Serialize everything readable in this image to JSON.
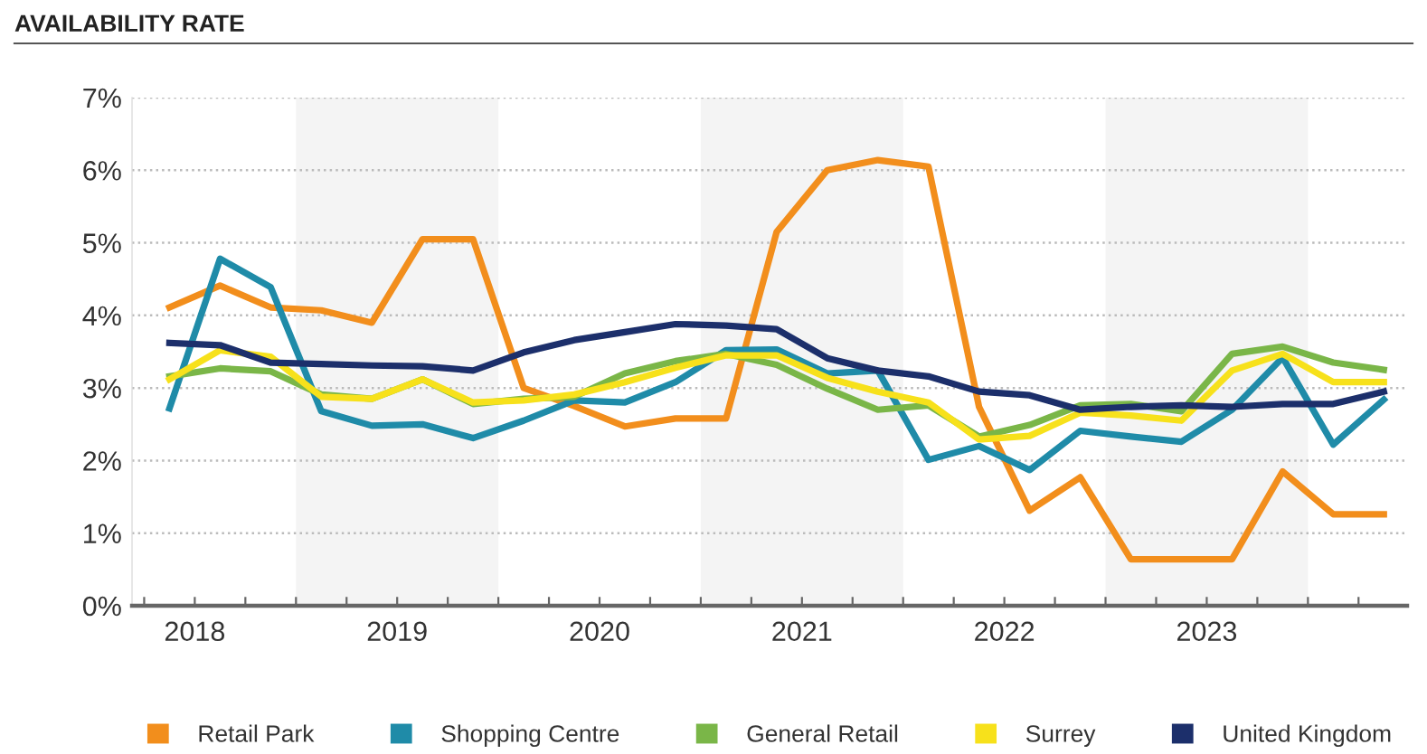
{
  "chart_data": {
    "type": "line",
    "title": "AVAILABILITY RATE",
    "x": [
      2018.375,
      2018.625,
      2018.875,
      2019.125,
      2019.375,
      2019.625,
      2019.875,
      2020.125,
      2020.375,
      2020.625,
      2020.875,
      2021.125,
      2021.375,
      2021.625,
      2021.875,
      2022.125,
      2022.375,
      2022.625,
      2022.875,
      2023.125,
      2023.375,
      2023.625,
      2023.875,
      2024.125,
      2024.375
    ],
    "series": [
      {
        "name": "Retail Park",
        "color": "#f28e1c",
        "values": [
          4.11,
          4.41,
          4.11,
          4.07,
          3.9,
          5.05,
          5.05,
          3.0,
          2.75,
          2.47,
          2.58,
          2.58,
          5.15,
          6.0,
          6.14,
          6.05,
          2.74,
          1.31,
          1.77,
          0.64,
          0.64,
          0.64,
          1.85,
          1.26,
          1.26
        ]
      },
      {
        "name": "Shopping Centre",
        "color": "#1f8ba8",
        "values": [
          2.72,
          4.78,
          4.39,
          2.68,
          2.48,
          2.5,
          2.31,
          2.55,
          2.83,
          2.8,
          3.08,
          3.52,
          3.53,
          3.2,
          3.24,
          2.01,
          2.2,
          1.87,
          2.41,
          2.33,
          2.26,
          2.7,
          3.42,
          2.22,
          2.84
        ]
      },
      {
        "name": "General Retail",
        "color": "#7ab648",
        "values": [
          3.16,
          3.27,
          3.23,
          2.91,
          2.85,
          3.12,
          2.78,
          2.85,
          2.88,
          3.2,
          3.37,
          3.47,
          3.32,
          2.99,
          2.7,
          2.76,
          2.33,
          2.49,
          2.76,
          2.78,
          2.68,
          3.47,
          3.57,
          3.35,
          3.25
        ]
      },
      {
        "name": "Surrey",
        "color": "#f7e11b",
        "values": [
          3.12,
          3.52,
          3.43,
          2.88,
          2.85,
          3.12,
          2.8,
          2.83,
          2.91,
          3.08,
          3.28,
          3.45,
          3.45,
          3.14,
          2.95,
          2.8,
          2.29,
          2.34,
          2.66,
          2.62,
          2.55,
          3.24,
          3.47,
          3.08,
          3.08
        ]
      },
      {
        "name": "United Kingdom",
        "color": "#1c2f6b",
        "values": [
          3.62,
          3.59,
          3.35,
          3.33,
          3.31,
          3.3,
          3.24,
          3.49,
          3.66,
          3.77,
          3.88,
          3.86,
          3.81,
          3.41,
          3.24,
          3.16,
          2.95,
          2.9,
          2.7,
          2.74,
          2.76,
          2.74,
          2.78,
          2.78,
          2.95
        ]
      }
    ],
    "xlim": [
      2018.19,
      2024.49
    ],
    "xticks": [
      {
        "value": 2018.25,
        "label": null
      },
      {
        "value": 2018.5,
        "label": "2018"
      },
      {
        "value": 2018.75,
        "label": null
      },
      {
        "value": 2019,
        "label": null
      },
      {
        "value": 2019.25,
        "label": null
      },
      {
        "value": 2019.5,
        "label": "2019"
      },
      {
        "value": 2019.75,
        "label": null
      },
      {
        "value": 2020,
        "label": null
      },
      {
        "value": 2020.25,
        "label": null
      },
      {
        "value": 2020.5,
        "label": "2020"
      },
      {
        "value": 2020.75,
        "label": null
      },
      {
        "value": 2021,
        "label": null
      },
      {
        "value": 2021.25,
        "label": null
      },
      {
        "value": 2021.5,
        "label": "2021"
      },
      {
        "value": 2021.75,
        "label": null
      },
      {
        "value": 2022,
        "label": null
      },
      {
        "value": 2022.25,
        "label": null
      },
      {
        "value": 2022.5,
        "label": "2022"
      },
      {
        "value": 2022.75,
        "label": null
      },
      {
        "value": 2023,
        "label": null
      },
      {
        "value": 2023.25,
        "label": null
      },
      {
        "value": 2023.5,
        "label": "2023"
      },
      {
        "value": 2023.75,
        "label": null
      },
      {
        "value": 2024,
        "label": null
      },
      {
        "value": 2024.25,
        "label": null
      }
    ],
    "ylim": [
      0,
      7
    ],
    "yticks": [
      {
        "value": 0,
        "label": "0%"
      },
      {
        "value": 1,
        "label": "1%"
      },
      {
        "value": 2,
        "label": "2%"
      },
      {
        "value": 3,
        "label": "3%"
      },
      {
        "value": 4,
        "label": "4%"
      },
      {
        "value": 5,
        "label": "5%"
      },
      {
        "value": 6,
        "label": "6%"
      },
      {
        "value": 7,
        "label": "7%"
      }
    ],
    "bands": [
      {
        "axis": "x",
        "from": 2019,
        "to": 2020,
        "color": "#f4f4f4"
      },
      {
        "axis": "x",
        "from": 2021,
        "to": 2022,
        "color": "#f4f4f4"
      },
      {
        "axis": "x",
        "from": 2023,
        "to": 2024,
        "color": "#f4f4f4"
      }
    ],
    "grid": "y",
    "legend": "bottom",
    "marker": "none",
    "line_style": "solid"
  }
}
